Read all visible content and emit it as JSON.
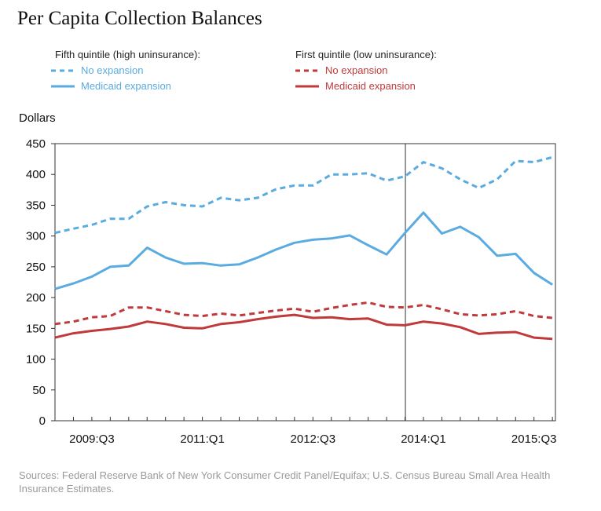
{
  "chart_data": {
    "type": "line",
    "title": "Per Capita Collection Balances",
    "ylabel": "Dollars",
    "ylim": [
      0,
      450
    ],
    "y_ticks": [
      "0",
      "50",
      "100",
      "150",
      "200",
      "250",
      "300",
      "350",
      "400",
      "450"
    ],
    "x_tick_labels": [
      "2009:Q3",
      "2011:Q1",
      "2012:Q3",
      "2014:Q1",
      "2015:Q3"
    ],
    "x": [
      "2009:Q1",
      "2009:Q2",
      "2009:Q3",
      "2009:Q4",
      "2010:Q1",
      "2010:Q2",
      "2010:Q3",
      "2010:Q4",
      "2011:Q1",
      "2011:Q2",
      "2011:Q3",
      "2011:Q4",
      "2012:Q1",
      "2012:Q2",
      "2012:Q3",
      "2012:Q4",
      "2013:Q1",
      "2013:Q2",
      "2013:Q3",
      "2013:Q4",
      "2014:Q1",
      "2014:Q2",
      "2014:Q3",
      "2014:Q4",
      "2015:Q1",
      "2015:Q2",
      "2015:Q3",
      "2015:Q4"
    ],
    "vertical_marker": "2013:Q4",
    "legend_groups": [
      {
        "header": "Fifth quintile (high uninsurance):",
        "color": "#5aabe0",
        "items": [
          {
            "label": "No expansion",
            "style": "dashed"
          },
          {
            "label": "Medicaid expansion",
            "style": "solid"
          }
        ]
      },
      {
        "header": "First quintile (low uninsurance):",
        "color": "#c0393b",
        "items": [
          {
            "label": "No expansion",
            "style": "dashed"
          },
          {
            "label": "Medicaid expansion",
            "style": "solid"
          }
        ]
      }
    ],
    "series": [
      {
        "name": "Fifth quintile (high uninsurance): No expansion",
        "color": "#5aabe0",
        "style": "dashed",
        "values": [
          305,
          312,
          318,
          328,
          328,
          348,
          355,
          350,
          348,
          362,
          358,
          362,
          376,
          382,
          382,
          400,
          400,
          402,
          390,
          397,
          420,
          410,
          392,
          378,
          392,
          422,
          420,
          428
        ]
      },
      {
        "name": "Fifth quintile (high uninsurance): Medicaid expansion",
        "color": "#5aabe0",
        "style": "solid",
        "values": [
          214,
          223,
          234,
          250,
          252,
          281,
          265,
          255,
          256,
          252,
          254,
          265,
          278,
          289,
          294,
          296,
          301,
          285,
          270,
          305,
          338,
          304,
          315,
          298,
          268,
          271,
          240,
          221
        ]
      },
      {
        "name": "First quintile (low uninsurance): No expansion",
        "color": "#c0393b",
        "style": "dashed",
        "values": [
          157,
          161,
          168,
          170,
          184,
          184,
          178,
          172,
          170,
          174,
          171,
          175,
          179,
          182,
          177,
          183,
          188,
          192,
          185,
          184,
          188,
          181,
          173,
          171,
          173,
          178,
          170,
          167
        ]
      },
      {
        "name": "First quintile (low uninsurance): Medicaid expansion",
        "color": "#c0393b",
        "style": "solid",
        "values": [
          135,
          142,
          146,
          149,
          153,
          161,
          157,
          151,
          150,
          157,
          160,
          165,
          169,
          172,
          167,
          168,
          165,
          166,
          156,
          155,
          161,
          158,
          152,
          141,
          143,
          144,
          135,
          133
        ]
      }
    ]
  },
  "source": "Sources: Federal Reserve Bank of New York Consumer Credit Panel/Equifax; U.S. Census Bureau Small Area Health Insurance Estimates."
}
